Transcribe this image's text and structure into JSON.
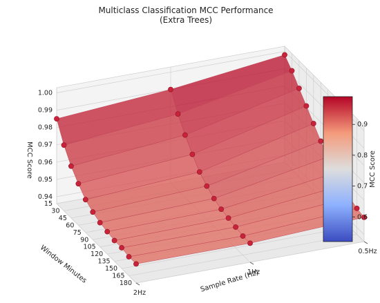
{
  "chart_data": {
    "type": "surface3d",
    "title": "Multiclass Classification MCC Performance",
    "subtitle": "(Extra Trees)",
    "xlabel": "Sample Rate (Hz)",
    "ylabel": "Window Minutes",
    "zlabel": "MCC Score",
    "x_ticks": [
      "2Hz",
      "1Hz",
      "0.5Hz"
    ],
    "y_ticks": [
      15,
      30,
      45,
      60,
      75,
      90,
      105,
      120,
      135,
      150,
      165,
      180
    ],
    "z_ticks": [
      0.94,
      0.95,
      0.96,
      0.97,
      0.98,
      0.99,
      1.0
    ],
    "z_tick_labels": [
      "0.94",
      "0.95",
      "0.96",
      "0.97",
      "0.98",
      "0.99",
      "1.00"
    ],
    "zlim": [
      0.936,
      1.003
    ],
    "colorbar": {
      "label": "MCC Score",
      "range": [
        0.52,
        0.99
      ],
      "ticks": [
        0.6,
        0.7,
        0.8,
        0.9
      ],
      "tick_labels": [
        "0.6",
        "0.7",
        "0.8",
        "0.9"
      ],
      "colormap": "coolwarm"
    },
    "series": [
      {
        "sample_rate": "2Hz",
        "window_minutes": [
          15,
          30,
          45,
          60,
          75,
          90,
          105,
          120,
          135,
          150,
          165,
          180
        ],
        "mcc": [
          0.985,
          0.974,
          0.966,
          0.96,
          0.955,
          0.952,
          0.95,
          0.949,
          0.948,
          0.948,
          0.947,
          0.947
        ]
      },
      {
        "sample_rate": "1Hz",
        "window_minutes": [
          15,
          30,
          45,
          60,
          75,
          90,
          105,
          120,
          135,
          150,
          165,
          180
        ],
        "mcc": [
          0.99,
          0.98,
          0.972,
          0.965,
          0.959,
          0.955,
          0.952,
          0.95,
          0.949,
          0.948,
          0.947,
          0.947
        ]
      },
      {
        "sample_rate": "0.5Hz",
        "window_minutes": [
          15,
          30,
          45,
          60,
          75,
          90,
          105,
          120,
          135,
          150,
          165,
          180
        ],
        "mcc": [
          0.998,
          0.993,
          0.987,
          0.981,
          0.975,
          0.969,
          0.964,
          0.959,
          0.956,
          0.953,
          0.951,
          0.95
        ]
      }
    ]
  }
}
